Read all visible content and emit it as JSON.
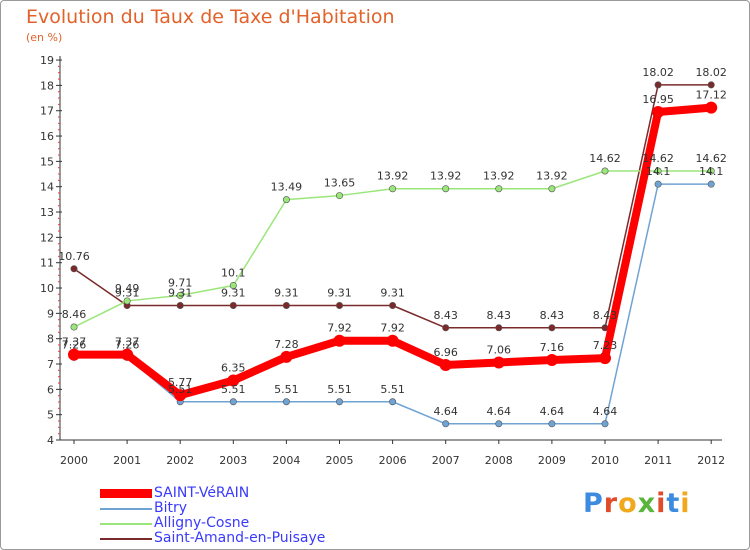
{
  "title": "Evolution du Taux de Taxe d'Habitation",
  "subtitle": "(en %)",
  "logo": {
    "text": "Proxiti",
    "colors": [
      "#3d8be0",
      "#e24b2a",
      "#f0a81c",
      "#5bb53c",
      "#e24b2a",
      "#3d8be0",
      "#f0a81c"
    ]
  },
  "chart_data": {
    "type": "line",
    "x": [
      "2000",
      "2001",
      "2002",
      "2003",
      "2004",
      "2005",
      "2006",
      "2007",
      "2008",
      "2009",
      "2010",
      "2011",
      "2012"
    ],
    "ylim": [
      4,
      19
    ],
    "yticks": [
      "4",
      "5",
      "6",
      "7",
      "8",
      "9",
      "10",
      "11",
      "12",
      "13",
      "14",
      "15",
      "16",
      "17",
      "18",
      "19"
    ],
    "grid": false,
    "legend_position": "bottom-left",
    "series": [
      {
        "name": "SAINT-VéRAIN",
        "color": "#ff0000",
        "values": [
          7.37,
          7.37,
          5.77,
          6.35,
          7.28,
          7.92,
          7.92,
          6.96,
          7.06,
          7.16,
          7.23,
          16.95,
          17.12
        ],
        "labels": [
          "7.37",
          "7.37",
          "5.77",
          "6.35",
          "7.28",
          "7.92",
          "7.92",
          "6.96",
          "7.06",
          "7.16",
          "7.23",
          "16.95",
          "17.12"
        ]
      },
      {
        "name": "Bitry",
        "color": "#6fa3d4",
        "values": [
          7.26,
          7.26,
          5.51,
          5.51,
          5.51,
          5.51,
          5.51,
          4.64,
          4.64,
          4.64,
          4.64,
          14.1,
          14.1
        ],
        "labels": [
          "7.26",
          "7.26",
          "5.51",
          "5.51",
          "5.51",
          "5.51",
          "5.51",
          "4.64",
          "4.64",
          "4.64",
          "4.64",
          "14.1",
          "14.1"
        ]
      },
      {
        "name": "Alligny-Cosne",
        "color": "#9be67a",
        "values": [
          8.46,
          9.49,
          9.71,
          10.1,
          13.49,
          13.65,
          13.92,
          13.92,
          13.92,
          13.92,
          14.62,
          14.62,
          14.62
        ],
        "labels": [
          "8.46",
          "9.49",
          "9.71",
          "10.1",
          "13.49",
          "13.65",
          "13.92",
          "13.92",
          "13.92",
          "13.92",
          "14.62",
          "14.62",
          "14.62"
        ]
      },
      {
        "name": "Saint-Amand-en-Puisaye",
        "color": "#7a2a2a",
        "values": [
          10.76,
          9.31,
          9.31,
          9.31,
          9.31,
          9.31,
          9.31,
          8.43,
          8.43,
          8.43,
          8.43,
          18.02,
          18.02
        ],
        "labels": [
          "10.76",
          "9.31",
          "9.31",
          "9.31",
          "9.31",
          "9.31",
          "9.31",
          "8.43",
          "8.43",
          "8.43",
          "8.43",
          "18.02",
          "18.02"
        ]
      }
    ]
  }
}
